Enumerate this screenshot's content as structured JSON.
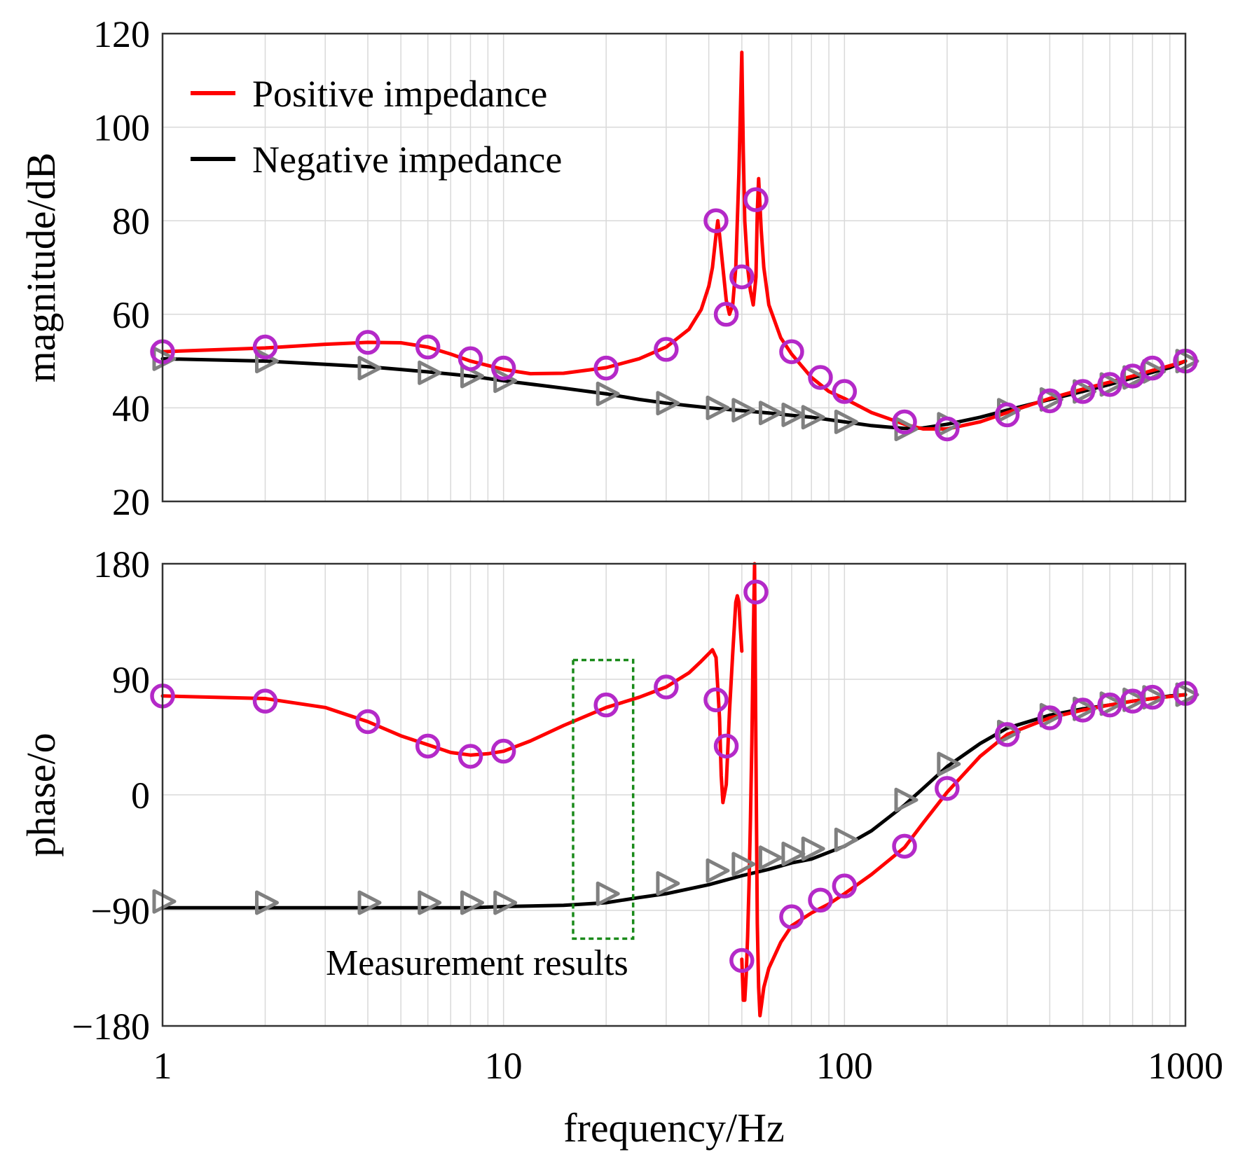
{
  "chart_data": [
    {
      "type": "line",
      "panel": "magnitude",
      "ylabel": "magnitude/dB",
      "xlabel": "",
      "xscale": "log",
      "xlim": [
        1,
        1000
      ],
      "ylim": [
        20,
        120
      ],
      "yticks": [
        20,
        40,
        60,
        80,
        100,
        120
      ],
      "grid": true,
      "legend_position": "top-left",
      "series": [
        {
          "name": "Positive impedance",
          "color": "#ff0000",
          "x": [
            1,
            2,
            3,
            4,
            5,
            6,
            7,
            8,
            10,
            12,
            15,
            20,
            25,
            30,
            35,
            38,
            40,
            41,
            42,
            42.5,
            43,
            44,
            45,
            46,
            47,
            48,
            49,
            50,
            50.5,
            51,
            52,
            53,
            54,
            55,
            55.5,
            56,
            57,
            58,
            60,
            65,
            70,
            80,
            90,
            100,
            120,
            150,
            170,
            200,
            250,
            300,
            400,
            500,
            600,
            700,
            800,
            900,
            1000
          ],
          "y": [
            52,
            52.8,
            53.6,
            54,
            53.9,
            53,
            51.5,
            50,
            48.2,
            47.3,
            47.4,
            48.6,
            50.5,
            53,
            56.8,
            61,
            66,
            70,
            77,
            80,
            77,
            70,
            63,
            60,
            62,
            70,
            90,
            116,
            95,
            80,
            70,
            65,
            62,
            68,
            82,
            89,
            78,
            70,
            62,
            55,
            51.5,
            46.5,
            43.5,
            42,
            39,
            36.5,
            35.5,
            35.5,
            37,
            39,
            42,
            44,
            45.5,
            46.8,
            48,
            49,
            50
          ]
        },
        {
          "name": "Negative impedance",
          "color": "#000000",
          "x": [
            1,
            2,
            3,
            4,
            5,
            6,
            8,
            10,
            15,
            20,
            25,
            30,
            40,
            50,
            60,
            70,
            80,
            100,
            120,
            150,
            170,
            200,
            250,
            300,
            400,
            500,
            600,
            700,
            800,
            900,
            1000
          ],
          "y": [
            50.5,
            50,
            49.3,
            48.8,
            48.2,
            47.7,
            46.8,
            45.8,
            44.2,
            43,
            41.8,
            41,
            40,
            39.4,
            38.9,
            38.4,
            38,
            37,
            36.2,
            35.6,
            35.7,
            36.5,
            38,
            39.5,
            41.8,
            43.5,
            45,
            46.4,
            47.6,
            48.6,
            50
          ]
        }
      ],
      "markers": [
        {
          "name": "Positive impedance measurement",
          "shape": "circle",
          "color": "#b429c8",
          "x": [
            1,
            2,
            4,
            6,
            8,
            10,
            20,
            30,
            42,
            45,
            50,
            55,
            70,
            85,
            100,
            150,
            200,
            300,
            400,
            500,
            600,
            700,
            800,
            1000
          ],
          "y": [
            52,
            53,
            54,
            53,
            50.5,
            48.5,
            48.5,
            52.5,
            80,
            60,
            68,
            84.5,
            52,
            46.5,
            43.5,
            37,
            35.5,
            38.5,
            41.5,
            43.5,
            45,
            46.8,
            48.5,
            50
          ]
        },
        {
          "name": "Negative impedance measurement",
          "shape": "triangle-right",
          "color": "#808080",
          "x": [
            1,
            2,
            4,
            6,
            8,
            10,
            20,
            30,
            42,
            50,
            60,
            70,
            80,
            100,
            150,
            200,
            300,
            400,
            500,
            600,
            700,
            800,
            1000
          ],
          "y": [
            50.5,
            50,
            48.5,
            47.5,
            46.8,
            45.8,
            43,
            41,
            40,
            39.5,
            38.9,
            38.5,
            38,
            37,
            35.5,
            36.5,
            39.5,
            41.8,
            43.5,
            45,
            46.5,
            47.8,
            50
          ]
        }
      ]
    },
    {
      "type": "line",
      "panel": "phase",
      "ylabel": "phase/ο",
      "xlabel": "frequency/Hz",
      "xscale": "log",
      "xlim": [
        1,
        1000
      ],
      "xticks": [
        "1",
        "10",
        "100",
        "1000"
      ],
      "ylim": [
        -180,
        180
      ],
      "yticks": [
        "180",
        "90",
        "0",
        "−90",
        "−180"
      ],
      "grid": true,
      "annotation": {
        "text": "Measurement results",
        "box_x": [
          16,
          24
        ],
        "box_y": [
          -112,
          105
        ]
      },
      "series": [
        {
          "name": "Positive impedance",
          "color": "#ff0000",
          "segments": [
            {
              "x": [
                1,
                2,
                3,
                4,
                5,
                6,
                7,
                8,
                9,
                10,
                12,
                15,
                20,
                25,
                30,
                35,
                38,
                40,
                41,
                42,
                43,
                43.5,
                44,
                45,
                46,
                47,
                48,
                48.5,
                49,
                49.5,
                50
              ],
              "y": [
                77,
                75,
                68,
                57,
                46,
                39,
                33,
                31,
                32,
                34,
                42,
                54,
                68,
                76,
                84,
                95,
                104,
                110,
                113,
                107,
                60,
                15,
                -6,
                8,
                65,
                110,
                150,
                155,
                150,
                130,
                112
              ]
            },
            {
              "x": [
                50,
                50.5,
                51,
                51.5,
                52,
                52.5,
                53,
                53.5,
                54,
                54.5,
                55,
                55.5,
                56,
                56.5,
                57,
                58,
                60,
                65,
                70,
                80,
                90,
                100,
                120,
                150,
                170,
                200,
                250,
                300,
                400,
                500,
                600,
                700,
                800,
                1000
              ],
              "y": [
                -128,
                -160,
                -160,
                -140,
                -110,
                -70,
                -20,
                40,
                120,
                180,
                30,
                -100,
                -150,
                -172,
                -165,
                -150,
                -135,
                -115,
                -102,
                -92,
                -85,
                -77,
                -62,
                -41,
                -22,
                2,
                30,
                47,
                60,
                66,
                70,
                73,
                75,
                78
              ]
            }
          ]
        },
        {
          "name": "Negative impedance",
          "color": "#000000",
          "x": [
            1,
            2,
            3,
            4,
            5,
            6,
            8,
            10,
            15,
            20,
            25,
            30,
            40,
            50,
            60,
            70,
            80,
            100,
            120,
            150,
            170,
            200,
            250,
            300,
            400,
            500,
            600,
            700,
            800,
            900,
            1000
          ],
          "y": [
            -88,
            -88,
            -88,
            -88,
            -88,
            -88,
            -88,
            -87,
            -86,
            -84,
            -80,
            -77,
            -70,
            -63,
            -58,
            -53,
            -50,
            -40,
            -28,
            -8,
            5,
            22,
            40,
            52,
            62,
            67,
            70,
            73,
            75,
            77,
            78
          ]
        }
      ],
      "markers": [
        {
          "name": "Positive impedance measurement",
          "shape": "circle",
          "color": "#b429c8",
          "x": [
            1,
            2,
            4,
            6,
            8,
            10,
            20,
            30,
            42,
            45,
            50,
            55,
            70,
            85,
            100,
            150,
            200,
            300,
            400,
            500,
            600,
            700,
            800,
            1000
          ],
          "y": [
            77,
            73,
            57,
            38,
            30,
            34,
            70,
            84,
            74,
            38,
            -129,
            158,
            -95,
            -82,
            -71,
            -40,
            5,
            47,
            60,
            66,
            70,
            73,
            76,
            79
          ]
        },
        {
          "name": "Negative impedance measurement",
          "shape": "triangle-right",
          "color": "#808080",
          "x": [
            1,
            2,
            4,
            6,
            8,
            10,
            20,
            30,
            42,
            50,
            60,
            70,
            80,
            100,
            150,
            200,
            300,
            400,
            500,
            600,
            700,
            800,
            1000
          ],
          "y": [
            -83,
            -84,
            -84,
            -84,
            -84,
            -84,
            -77,
            -69,
            -59,
            -54,
            -49,
            -46,
            -42,
            -35,
            -4,
            24,
            49,
            62,
            67,
            71,
            74,
            76,
            78
          ]
        }
      ]
    }
  ]
}
